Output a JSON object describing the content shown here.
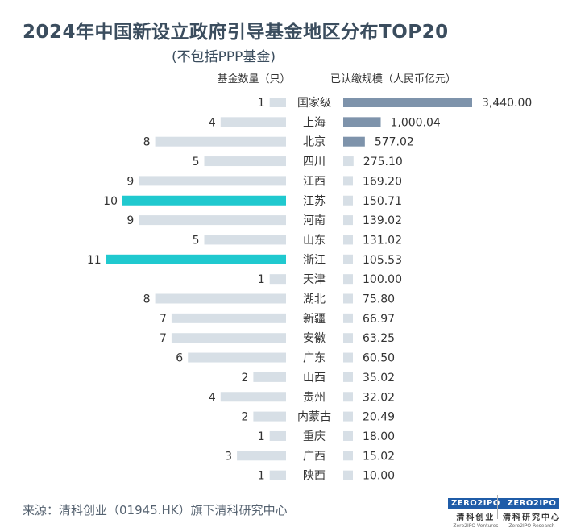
{
  "title": "2024年中国新设立政府引导基金地区分布TOP20",
  "subtitle": "(不包括PPP基金)",
  "source": "来源：清科创业（01945.HK）旗下清科研究中心",
  "logos": [
    {
      "badge": "ZERO2IPO",
      "name": "清科创业",
      "sub": "Zero2IPO Ventures"
    },
    {
      "badge": "ZERO2IPO",
      "name": "清科研究中心",
      "sub": "Zero2IPO Research"
    }
  ],
  "colors": {
    "count_bar": "#d7dfe6",
    "count_highlight": "#20c9cf",
    "scale_bar": "#7e93ab",
    "scale_bar_small": "#d7dfe6",
    "text": "#333333"
  },
  "chart_data": {
    "type": "bar",
    "title": "2024年中国新设立政府引导基金地区分布TOP20",
    "categories": [
      "国家级",
      "上海",
      "北京",
      "四川",
      "江西",
      "江苏",
      "河南",
      "山东",
      "浙江",
      "天津",
      "湖北",
      "新疆",
      "安徽",
      "广东",
      "山西",
      "贵州",
      "内蒙古",
      "重庆",
      "广西",
      "陕西"
    ],
    "series": [
      {
        "name": "基金数量（只）",
        "values": [
          1,
          4,
          8,
          5,
          9,
          10,
          9,
          5,
          11,
          1,
          8,
          7,
          7,
          6,
          2,
          4,
          2,
          1,
          3,
          1
        ],
        "highlight": [
          "江苏",
          "浙江"
        ]
      },
      {
        "name": "已认缴规模（人民币亿元）",
        "values": [
          3440.0,
          1000.04,
          577.02,
          275.1,
          169.2,
          150.71,
          139.02,
          131.02,
          105.53,
          100.0,
          75.8,
          66.97,
          63.25,
          60.5,
          35.02,
          32.02,
          20.49,
          18.0,
          15.02,
          10.0
        ],
        "labels": [
          "3,440.00",
          "1,000.04",
          "577.02",
          "275.10",
          "169.20",
          "150.71",
          "139.02",
          "131.02",
          "105.53",
          "100.00",
          "75.80",
          "66.97",
          "63.25",
          "60.50",
          "35.02",
          "32.02",
          "20.49",
          "18.00",
          "15.02",
          "10.00"
        ]
      }
    ],
    "count_header": "基金数量（只）",
    "scale_header": "已认缴规模（人民币亿元）"
  }
}
